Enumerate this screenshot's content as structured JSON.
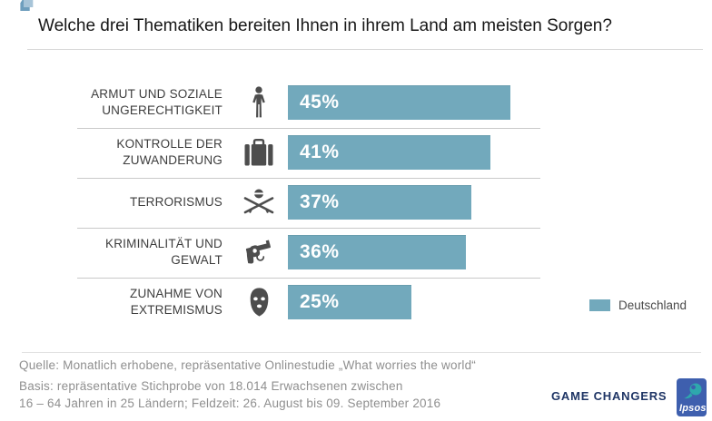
{
  "title": "Welche drei Thematiken bereiten Ihnen in ihrem Land am meisten Sorgen?",
  "chart_data": {
    "type": "bar",
    "orientation": "horizontal",
    "title": "Welche drei Thematiken bereiten Ihnen in ihrem Land am meisten Sorgen?",
    "categories": [
      "ARMUT UND SOZIALE UNGERECHTIGKEIT",
      "KONTROLLE DER ZUWANDERUNG",
      "TERRORISMUS",
      "KRIMINALITÄT UND GEWALT",
      "ZUNAHME VON EXTREMISMUS"
    ],
    "label_lines": [
      [
        "ARMUT UND SOZIALE",
        "UNGERECHTIGKEIT"
      ],
      [
        "KONTROLLE DER",
        "ZUWANDERUNG"
      ],
      [
        "TERRORISMUS"
      ],
      [
        "KRIMINALITÄT UND",
        "GEWALT"
      ],
      [
        "ZUNAHME VON",
        "EXTREMISMUS"
      ]
    ],
    "values": [
      45,
      41,
      37,
      36,
      25
    ],
    "value_labels": [
      "45%",
      "41%",
      "37%",
      "36%",
      "25%"
    ],
    "icons": [
      "standing-person",
      "suitcase",
      "terrorist-crossed-rifles",
      "revolver",
      "balaclava"
    ],
    "series": [
      {
        "name": "Deutschland",
        "values": [
          45,
          41,
          37,
          36,
          25
        ]
      }
    ],
    "xlim": [
      0,
      100
    ],
    "bar_color": "#72A9BC",
    "legend_position": "right-bottom",
    "grid": false
  },
  "legend": {
    "label": "Deutschland",
    "color": "#72A9BC"
  },
  "footer": {
    "source_line": "Quelle: Monatlich erhobene, repräsentative Onlinestudie „What worries the world“",
    "basis_line1": "Basis: repräsentative Stichprobe von 18.014 Erwachsenen zwischen",
    "basis_line2": "16 – 64 Jahren in 25 Ländern; Feldzeit: 26. August bis 09. September 2016",
    "brand_text": "GAME CHANGERS",
    "logo_text": "Ipsos"
  },
  "ornaments": {
    "quote_glyph": "‘"
  },
  "colors": {
    "bar": "#72A9BC",
    "icon_gray": "#4d4d4d",
    "brand_navy": "#1F3565",
    "logo_blue": "#3E5FAE",
    "logo_swirl_teal": "#2EA8AD",
    "quote_dark": "#6E9EBD",
    "quote_light": "#A7C4D8",
    "divider": "#c9c9c9"
  }
}
